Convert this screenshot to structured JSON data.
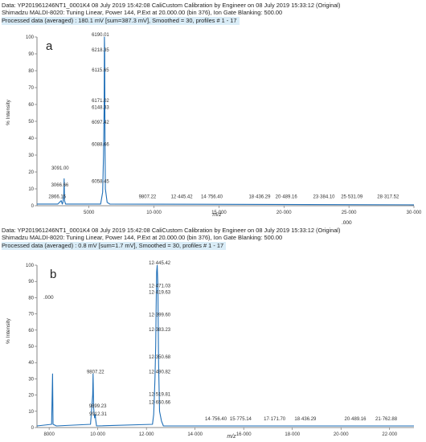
{
  "charts": [
    {
      "header_line1": "Data: YP201961246NT1_0001K4 08 July 2019 15:42:08 CaliCustom Calibration  by Engineer on 08 July 2019 15:33:12 (Original)",
      "header_line2": "Shimadzu MALDI-8020: Tuning Linear, Power 144, P.Ext at 20.000.00 (bin 376), Ion Gate Blanking: 500.00",
      "processed": "Processed data (averaged) : 180.1 mV [sum=387.3 mV], Smoothed = 30, profiles # 1 - 17",
      "panel_label": "a",
      "ylabel": "% Intensity",
      "xlabel": "m/z",
      "stray_text": ".000"
    },
    {
      "header_line1": "Data: YP201961246NT1_0001K4 08 July 2019 15:42:08 CaliCustom Calibration  by Engineer on 08 July 2019 15:33:12 (Original)",
      "header_line2": "Shimadzu MALDI-8020: Tuning Linear, Power 144, P.Ext at 20.000.00 (bin 376), Ion Gate Blanking: 500.00",
      "processed": "Processed data (averaged) : 0.8 mV [sum=1.7 mV], Smoothed = 30, profiles # 1 - 17",
      "panel_label": "b",
      "ylabel": "% Intensity",
      "xlabel": "m/z",
      "stray_text": ".000"
    }
  ],
  "chart_data": [
    {
      "type": "line",
      "title": "",
      "xlabel": "m/z",
      "ylabel": "% Intensity",
      "xlim": [
        1000,
        30000
      ],
      "ylim": [
        0,
        100
      ],
      "grid": false,
      "x_ticks": [
        {
          "value": 5000,
          "label": "5000"
        },
        {
          "value": 10000,
          "label": "10·000"
        },
        {
          "value": 15000,
          "label": "15·000"
        },
        {
          "value": 20000,
          "label": "20·000"
        },
        {
          "value": 25000,
          "label": "25·000"
        },
        {
          "value": 30000,
          "label": "30·000"
        }
      ],
      "y_ticks": [
        0,
        10,
        20,
        30,
        40,
        50,
        60,
        70,
        80,
        90,
        100
      ],
      "spectrum": [
        [
          1000,
          1
        ],
        [
          2600,
          1
        ],
        [
          2867,
          3
        ],
        [
          2950,
          1
        ],
        [
          3000,
          2
        ],
        [
          3067,
          7
        ],
        [
          3091,
          16
        ],
        [
          3120,
          3
        ],
        [
          3200,
          1
        ],
        [
          5900,
          1
        ],
        [
          6050,
          8
        ],
        [
          6120,
          30
        ],
        [
          6170,
          60
        ],
        [
          6190,
          100
        ],
        [
          6210,
          90
        ],
        [
          6230,
          40
        ],
        [
          6260,
          10
        ],
        [
          6400,
          2
        ],
        [
          6600,
          1
        ],
        [
          30000,
          0.5
        ]
      ],
      "peak_labels": [
        {
          "mz": 6190,
          "label": "6190.01",
          "y": 100
        },
        {
          "mz": 6190,
          "label": "6218.35",
          "y": 91
        },
        {
          "mz": 6190,
          "label": "6115.65",
          "y": 79
        },
        {
          "mz": 6190,
          "label": "6171.02",
          "y": 61
        },
        {
          "mz": 6190,
          "label": "6148.33",
          "y": 57
        },
        {
          "mz": 6190,
          "label": "6097.42",
          "y": 48
        },
        {
          "mz": 6190,
          "label": "6088.66",
          "y": 35
        },
        {
          "mz": 6190,
          "label": "6058.45",
          "y": 13
        },
        {
          "mz": 3091,
          "label": "3091.00",
          "y": 21
        },
        {
          "mz": 3067,
          "label": "3066.66",
          "y": 11
        },
        {
          "mz": 2867,
          "label": "2866.15",
          "y": 4
        },
        {
          "mz": 9807,
          "label": "9807.22",
          "y": 4
        },
        {
          "mz": 12445,
          "label": "12·445.42",
          "y": 4
        },
        {
          "mz": 14756,
          "label": "14·756.40",
          "y": 4
        },
        {
          "mz": 18436,
          "label": "18·436.29",
          "y": 4
        },
        {
          "mz": 20489,
          "label": "20·489.16",
          "y": 4
        },
        {
          "mz": 23384,
          "label": "23·384.10",
          "y": 4
        },
        {
          "mz": 25531,
          "label": "25·531.09",
          "y": 4
        },
        {
          "mz": 28318,
          "label": "28·317.52",
          "y": 4
        }
      ]
    },
    {
      "type": "line",
      "title": "",
      "xlabel": "m/z",
      "ylabel": "% Intensity",
      "xlim": [
        7500,
        23000
      ],
      "ylim": [
        0,
        100
      ],
      "grid": false,
      "x_ticks": [
        {
          "value": 8000,
          "label": "8000"
        },
        {
          "value": 10000,
          "label": "10·000"
        },
        {
          "value": 12000,
          "label": "12·000"
        },
        {
          "value": 14000,
          "label": "14·000"
        },
        {
          "value": 16000,
          "label": "16·000"
        },
        {
          "value": 18000,
          "label": "18·000"
        },
        {
          "value": 20000,
          "label": "20·000"
        },
        {
          "value": 22000,
          "label": "22·000"
        }
      ],
      "y_ticks": [
        0,
        10,
        20,
        30,
        40,
        50,
        60,
        70,
        80,
        90,
        100
      ],
      "spectrum": [
        [
          7500,
          1
        ],
        [
          8100,
          2
        ],
        [
          8140,
          33
        ],
        [
          8160,
          2
        ],
        [
          8300,
          1
        ],
        [
          9700,
          2
        ],
        [
          9790,
          20
        ],
        [
          9807,
          33
        ],
        [
          9830,
          12
        ],
        [
          9870,
          6
        ],
        [
          9899,
          8
        ],
        [
          9912,
          5
        ],
        [
          9950,
          1
        ],
        [
          12250,
          2
        ],
        [
          12300,
          8
        ],
        [
          12350,
          30
        ],
        [
          12380,
          50
        ],
        [
          12400,
          75
        ],
        [
          12420,
          96
        ],
        [
          12445,
          100
        ],
        [
          12471,
          88
        ],
        [
          12500,
          40
        ],
        [
          12540,
          10
        ],
        [
          12620,
          4
        ],
        [
          12700,
          1
        ],
        [
          23000,
          1
        ]
      ],
      "peak_labels": [
        {
          "mz": 12445,
          "label": "12·445.42",
          "y": 100
        },
        {
          "mz": 12445,
          "label": "12·471.03",
          "y": 86
        },
        {
          "mz": 12445,
          "label": "12·419.63",
          "y": 82
        },
        {
          "mz": 12445,
          "label": "12·399.60",
          "y": 68
        },
        {
          "mz": 12445,
          "label": "12·383.23",
          "y": 59
        },
        {
          "mz": 12445,
          "label": "12·350.68",
          "y": 42
        },
        {
          "mz": 12445,
          "label": "12·490.82",
          "y": 33
        },
        {
          "mz": 12445,
          "label": "12·519.81",
          "y": 19
        },
        {
          "mz": 12445,
          "label": "12·650.66",
          "y": 14
        },
        {
          "mz": 9807,
          "label": "9807.22",
          "y": 33
        },
        {
          "mz": 9899,
          "label": "9899.23",
          "y": 12
        },
        {
          "mz": 9912,
          "label": "9912.31",
          "y": 7
        },
        {
          "mz": 14756,
          "label": "14·756.40",
          "y": 4
        },
        {
          "mz": 15775,
          "label": "15·775.14",
          "y": 4
        },
        {
          "mz": 17172,
          "label": "17·171.70",
          "y": 4
        },
        {
          "mz": 18436,
          "label": "18·436.29",
          "y": 4
        },
        {
          "mz": 20489,
          "label": "20·489.16",
          "y": 4
        },
        {
          "mz": 21763,
          "label": "21·762.88",
          "y": 4
        }
      ]
    }
  ],
  "colors": {
    "trace": "#1f6fb8",
    "axis": "#666666",
    "text": "#333333",
    "processed_bg": "#d9ecf7"
  }
}
